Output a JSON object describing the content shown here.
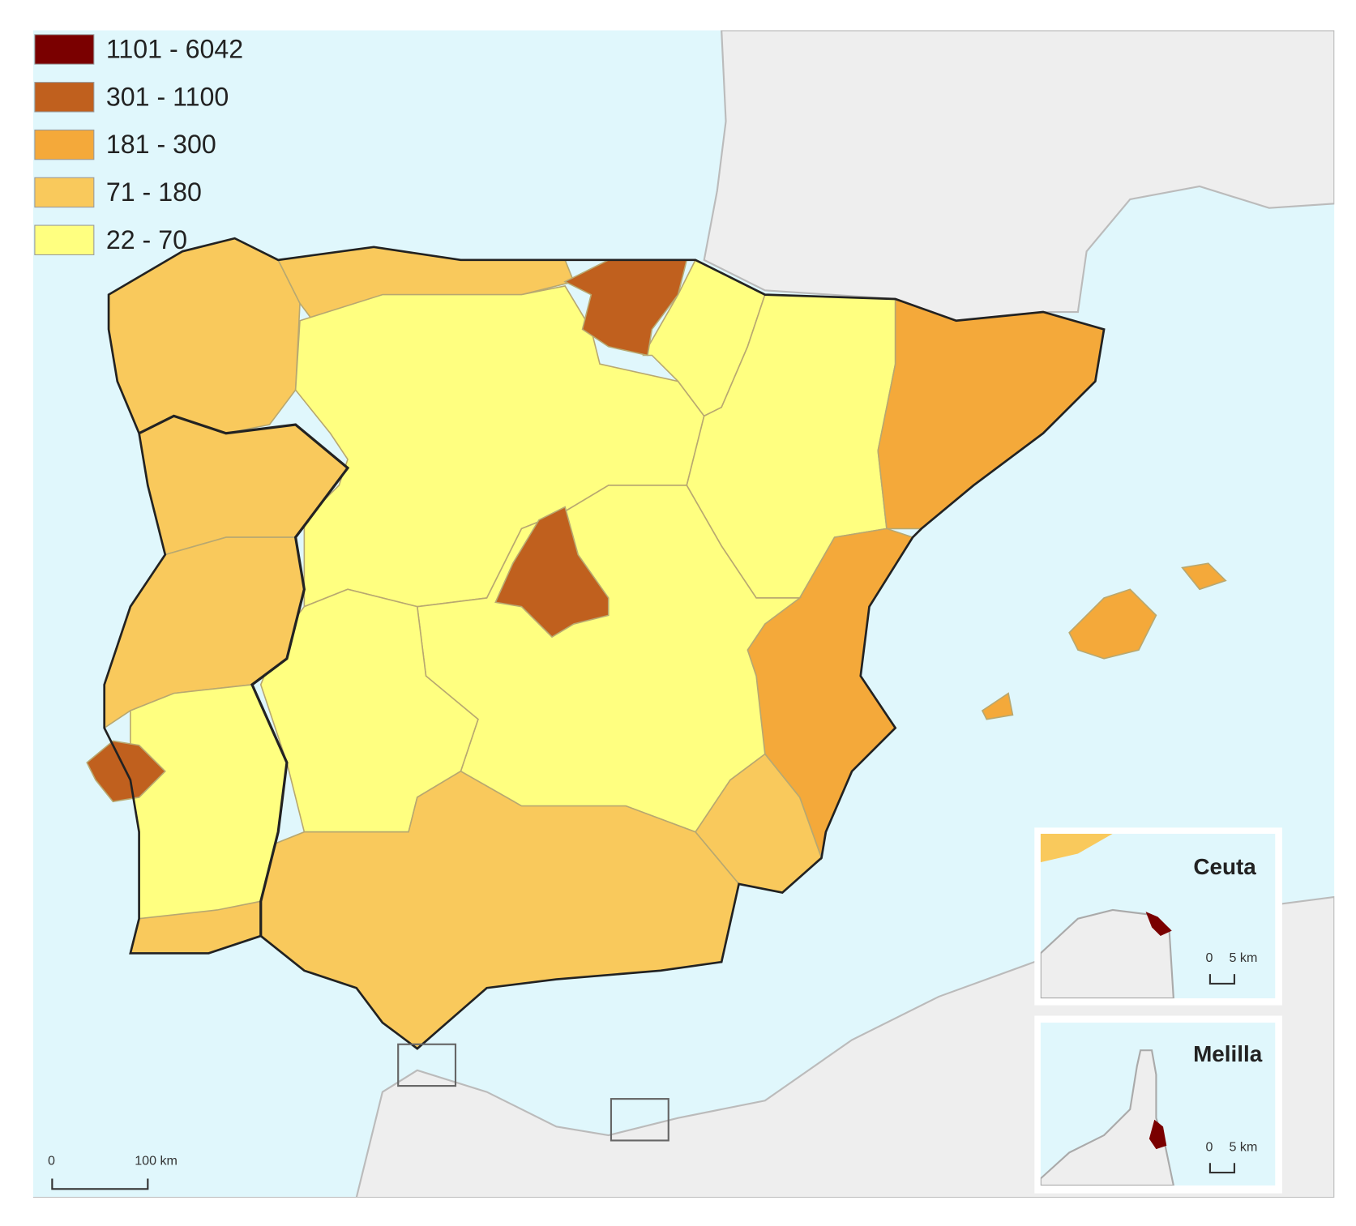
{
  "legend": {
    "items": [
      {
        "label": "1101 - 6042",
        "color": "#7a0000"
      },
      {
        "label": "301 - 1100",
        "color": "#c0601e"
      },
      {
        "label": "181 - 300",
        "color": "#f4a93a"
      },
      {
        "label": "71 - 180",
        "color": "#f9c95c"
      },
      {
        "label": "22 - 70",
        "color": "#ffff80"
      }
    ]
  },
  "scale_bar": {
    "start": "0",
    "end": "100 km"
  },
  "insets": [
    {
      "title": "Ceuta",
      "scale_start": "0",
      "scale_end": "5 km"
    },
    {
      "title": "Melilla",
      "scale_start": "0",
      "scale_end": "5 km"
    }
  ]
}
